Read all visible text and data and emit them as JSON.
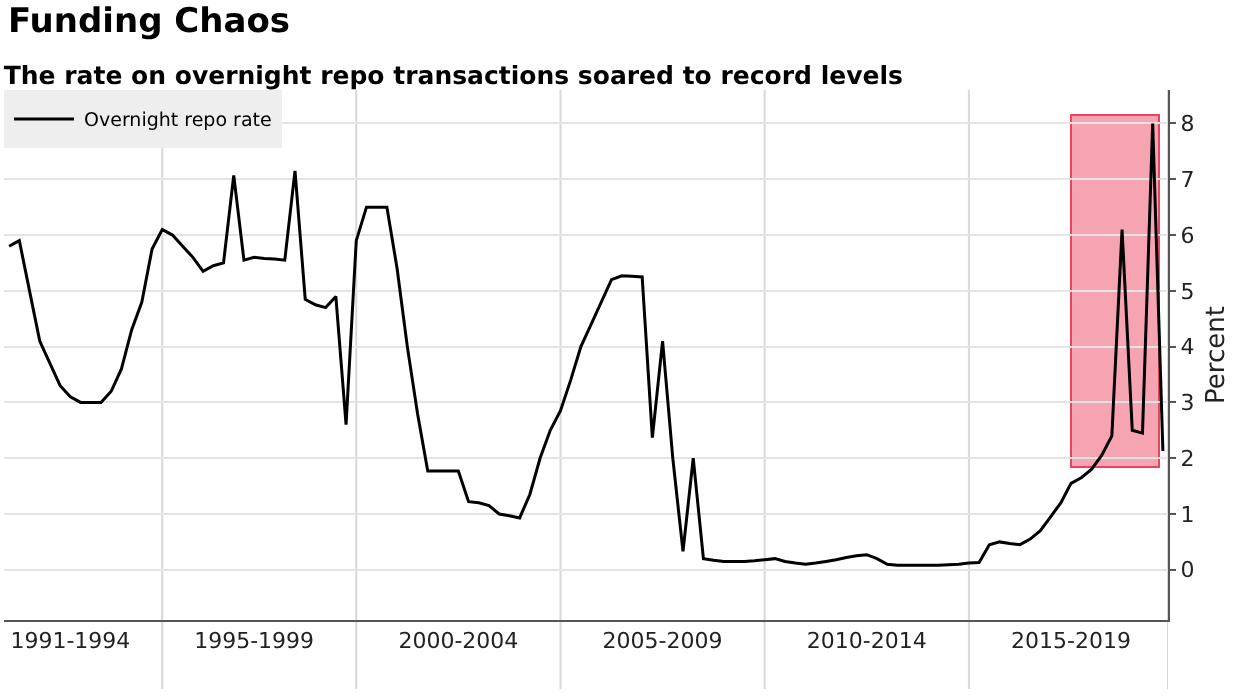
{
  "chart_data": {
    "type": "line",
    "title": "Funding Chaos",
    "subtitle": "The rate on overnight repo transactions soared to record levels",
    "ylabel": "Percent",
    "categories": [
      null,
      null,
      null,
      null,
      null,
      null,
      "1991-1994",
      null,
      null,
      null,
      null,
      null,
      null,
      null,
      null,
      null,
      null,
      null,
      null,
      null,
      null,
      null,
      null,
      null,
      "1995-1999",
      null,
      null,
      null,
      null,
      null,
      null,
      null,
      null,
      null,
      null,
      null,
      null,
      null,
      null,
      null,
      null,
      null,
      null,
      null,
      "2000-2004",
      null,
      null,
      null,
      null,
      null,
      null,
      null,
      null,
      null,
      null,
      null,
      null,
      null,
      null,
      null,
      null,
      null,
      null,
      null,
      "2005-2009",
      null,
      null,
      null,
      null,
      null,
      null,
      null,
      null,
      null,
      null,
      null,
      null,
      null,
      null,
      null,
      null,
      null,
      null,
      null,
      "2010-2014",
      null,
      null,
      null,
      null,
      null,
      null,
      null,
      null,
      null,
      null,
      null,
      null,
      null,
      null,
      null,
      null,
      null,
      null,
      null,
      "2015-2019",
      null,
      null,
      null,
      null,
      null,
      null,
      null,
      null,
      null
    ],
    "series": [
      {
        "name": "Overnight repo rate",
        "color": "#000000",
        "values": [
          5.8,
          5.9,
          5.0,
          4.1,
          3.7,
          3.3,
          3.1,
          3.0,
          3.0,
          3.0,
          3.2,
          3.6,
          4.3,
          4.8,
          5.75,
          6.1,
          6.0,
          5.8,
          5.6,
          5.35,
          5.45,
          5.5,
          7.07,
          5.55,
          5.6,
          5.58,
          5.57,
          5.55,
          7.15,
          4.85,
          4.75,
          4.7,
          4.9,
          2.6,
          5.9,
          6.5,
          6.5,
          6.5,
          5.4,
          4.0,
          2.8,
          1.77,
          1.77,
          1.77,
          1.77,
          1.22,
          1.2,
          1.15,
          1.0,
          0.97,
          0.93,
          1.35,
          2.0,
          2.5,
          2.85,
          3.4,
          4.0,
          4.4,
          4.8,
          5.2,
          5.27,
          5.26,
          5.25,
          2.37,
          4.1,
          2.0,
          0.33,
          2.0,
          0.2,
          0.17,
          0.15,
          0.15,
          0.15,
          0.16,
          0.18,
          0.2,
          0.15,
          0.12,
          0.1,
          0.12,
          0.15,
          0.18,
          0.22,
          0.25,
          0.27,
          0.2,
          0.1,
          0.08,
          0.08,
          0.08,
          0.08,
          0.08,
          0.09,
          0.1,
          0.12,
          0.13,
          0.45,
          0.5,
          0.47,
          0.45,
          0.55,
          0.7,
          0.95,
          1.2,
          1.55,
          1.65,
          1.8,
          2.05,
          2.4,
          6.1,
          2.5,
          2.45,
          8.0,
          2.13
        ]
      }
    ],
    "ylim": [
      -0.9,
      8.6
    ],
    "yticks": [
      0,
      1,
      2,
      3,
      4,
      5,
      6,
      7,
      8
    ],
    "grid": true,
    "legend": "top left",
    "marker": "none",
    "line_style": "solid"
  }
}
